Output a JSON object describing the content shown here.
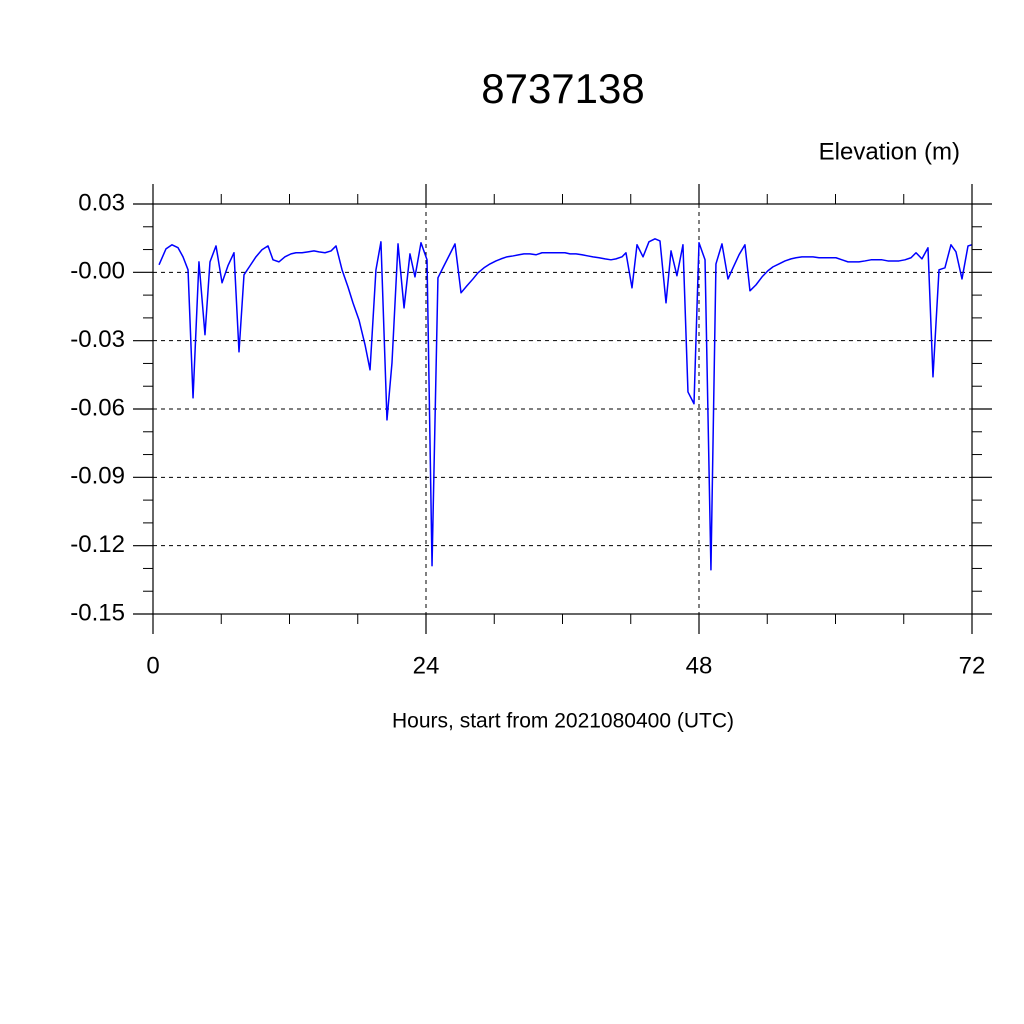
{
  "chart_data": {
    "type": "line",
    "title": "8737138",
    "ylabel": "Elevation (m)",
    "xlabel": "Hours, start from 2021080400 (UTC)",
    "xlim": [
      0,
      72
    ],
    "ylim": [
      -0.15,
      0.03
    ],
    "xticks": [
      0,
      24,
      48,
      72
    ],
    "yticks": [
      0.03,
      {
        "value": 0,
        "label": "-0.00"
      },
      -0.03,
      -0.06,
      -0.09,
      -0.12,
      -0.15
    ],
    "xminorticks": [
      6,
      12,
      18,
      30,
      36,
      42,
      54,
      60,
      66
    ],
    "yminorticks": [
      0.02,
      0.01,
      -0.01,
      -0.02,
      -0.04,
      -0.05,
      -0.07,
      -0.08,
      -0.1,
      -0.11,
      -0.13,
      -0.14
    ],
    "grid": true,
    "x": [
      0.53,
      1.14,
      1.67,
      2.2,
      2.64,
      3.08,
      3.52,
      4.04,
      4.57,
      5.01,
      5.54,
      6.07,
      6.59,
      7.12,
      7.56,
      8.0,
      8.53,
      9.05,
      9.58,
      10.11,
      10.55,
      11.08,
      11.6,
      12.13,
      12.57,
      13.1,
      13.63,
      14.15,
      14.59,
      15.12,
      15.65,
      16.09,
      16.62,
      17.14,
      17.58,
      18.11,
      18.64,
      19.08,
      19.6,
      20.04,
      20.57,
      21.01,
      21.54,
      22.07,
      22.59,
      23.03,
      23.56,
      24.09,
      24.53,
      25.05,
      25.58,
      26.11,
      26.55,
      27.08,
      27.6,
      28.13,
      28.57,
      29.1,
      29.63,
      30.15,
      30.59,
      31.12,
      31.65,
      32.18,
      32.61,
      33.14,
      33.67,
      34.2,
      34.64,
      35.16,
      35.69,
      36.22,
      36.66,
      37.19,
      37.71,
      38.24,
      38.68,
      39.21,
      39.74,
      40.26,
      40.7,
      41.23,
      41.58,
      42.11,
      42.55,
      43.08,
      43.6,
      44.13,
      44.57,
      45.1,
      45.54,
      46.06,
      46.59,
      47.03,
      47.56,
      48.0,
      48.53,
      49.05,
      49.49,
      50.02,
      50.55,
      50.99,
      51.52,
      52.04,
      52.48,
      53.01,
      53.54,
      54.06,
      54.5,
      55.03,
      55.56,
      56.09,
      56.53,
      57.05,
      57.58,
      58.02,
      58.55,
      59.08,
      59.6,
      60.04,
      60.57,
      61.1,
      61.62,
      62.06,
      62.59,
      63.12,
      63.56,
      64.09,
      64.61,
      65.14,
      65.58,
      66.11,
      66.64,
      67.08,
      67.6,
      68.13,
      68.57,
      69.1,
      69.62,
      70.15,
      70.59,
      71.12,
      71.65,
      72.0
    ],
    "series": [
      {
        "name": "Elevation",
        "color": "#0000ff",
        "values": [
          0.0033,
          0.0103,
          0.0121,
          0.0108,
          0.0068,
          0.0011,
          -0.0551,
          0.0046,
          -0.0274,
          0.0046,
          0.0116,
          -0.0046,
          0.0029,
          0.0086,
          -0.0349,
          -0.0011,
          0.0029,
          0.0068,
          0.0099,
          0.0116,
          0.0055,
          0.0046,
          0.0068,
          0.0081,
          0.0086,
          0.0086,
          0.009,
          0.0094,
          0.009,
          0.0086,
          0.0094,
          0.0116,
          0.0011,
          -0.0064,
          -0.0134,
          -0.0209,
          -0.0318,
          -0.0428,
          0.0011,
          0.0134,
          -0.0648,
          -0.0397,
          0.0125,
          -0.0156,
          0.0081,
          -0.002,
          0.013,
          0.0055,
          -0.1288,
          -0.0024,
          0.0029,
          0.0081,
          0.0125,
          -0.009,
          -0.0059,
          -0.0029,
          -0.0002,
          0.002,
          0.0037,
          0.005,
          0.0059,
          0.0068,
          0.0072,
          0.0077,
          0.0081,
          0.0081,
          0.0077,
          0.0086,
          0.0086,
          0.0086,
          0.0086,
          0.0086,
          0.0081,
          0.0081,
          0.0077,
          0.0072,
          0.0068,
          0.0064,
          0.0059,
          0.0055,
          0.0059,
          0.0068,
          0.0086,
          -0.0068,
          0.0121,
          0.0068,
          0.0134,
          0.0147,
          0.0138,
          -0.0134,
          0.0094,
          -0.0015,
          0.0121,
          -0.0525,
          -0.0577,
          0.013,
          0.0055,
          -0.1306,
          0.0037,
          0.0125,
          -0.0029,
          0.002,
          0.0077,
          0.0121,
          -0.0081,
          -0.0055,
          -0.002,
          0.0007,
          0.0024,
          0.0037,
          0.005,
          0.0059,
          0.0064,
          0.0068,
          0.0068,
          0.0068,
          0.0064,
          0.0064,
          0.0064,
          0.0064,
          0.0055,
          0.0046,
          0.0046,
          0.0046,
          0.005,
          0.0055,
          0.0055,
          0.0055,
          0.005,
          0.005,
          0.005,
          0.0055,
          0.0064,
          0.0086,
          0.0059,
          0.0108,
          -0.0459,
          0.0011,
          0.002,
          0.0121,
          0.009,
          -0.0029,
          0.0116,
          0.0121
        ]
      }
    ]
  }
}
